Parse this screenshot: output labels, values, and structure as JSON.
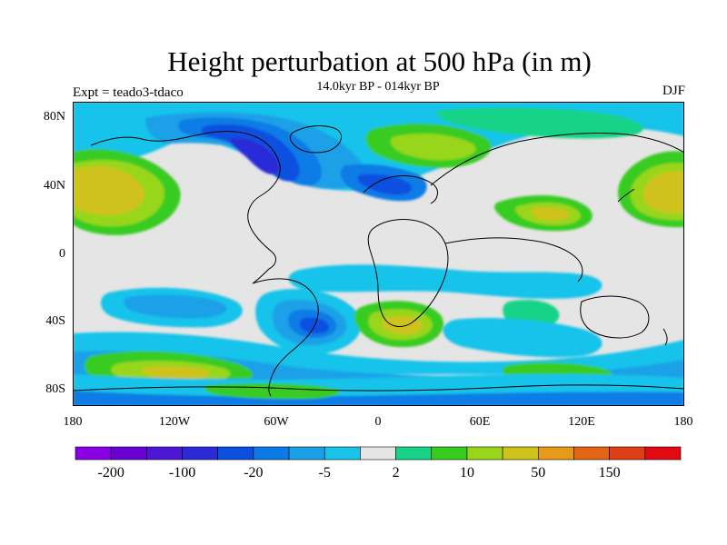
{
  "title": "Height perturbation at 500 hPa (in m)",
  "subtitle": "14.0kyr BP - 014kyr BP",
  "left_label": "Expt = teado3-tdaco",
  "right_label": "DJF",
  "axes": {
    "y_ticks": [
      "80N",
      "40N",
      "0",
      "40S",
      "80S"
    ],
    "x_ticks": [
      "180",
      "120W",
      "60W",
      "0",
      "60E",
      "120E",
      "180"
    ]
  },
  "colorbar": {
    "colors": [
      "#8A00E5",
      "#6A00D4",
      "#4C16D6",
      "#2A2AD8",
      "#0A4FE0",
      "#0A7BE6",
      "#1AA0E8",
      "#19C3EA",
      "#E5E5E5",
      "#18D387",
      "#38CC20",
      "#98D61A",
      "#CFC21C",
      "#E69A18",
      "#E36414",
      "#DF3D15",
      "#E10A12"
    ],
    "labels": [
      "-200",
      "-100",
      "-20",
      "-5",
      "2",
      "10",
      "50",
      "150"
    ],
    "label_positions": [
      0,
      2,
      4,
      6,
      8,
      10,
      12,
      14
    ]
  },
  "map": {
    "background": "#E5E5E5",
    "region": "Global"
  }
}
